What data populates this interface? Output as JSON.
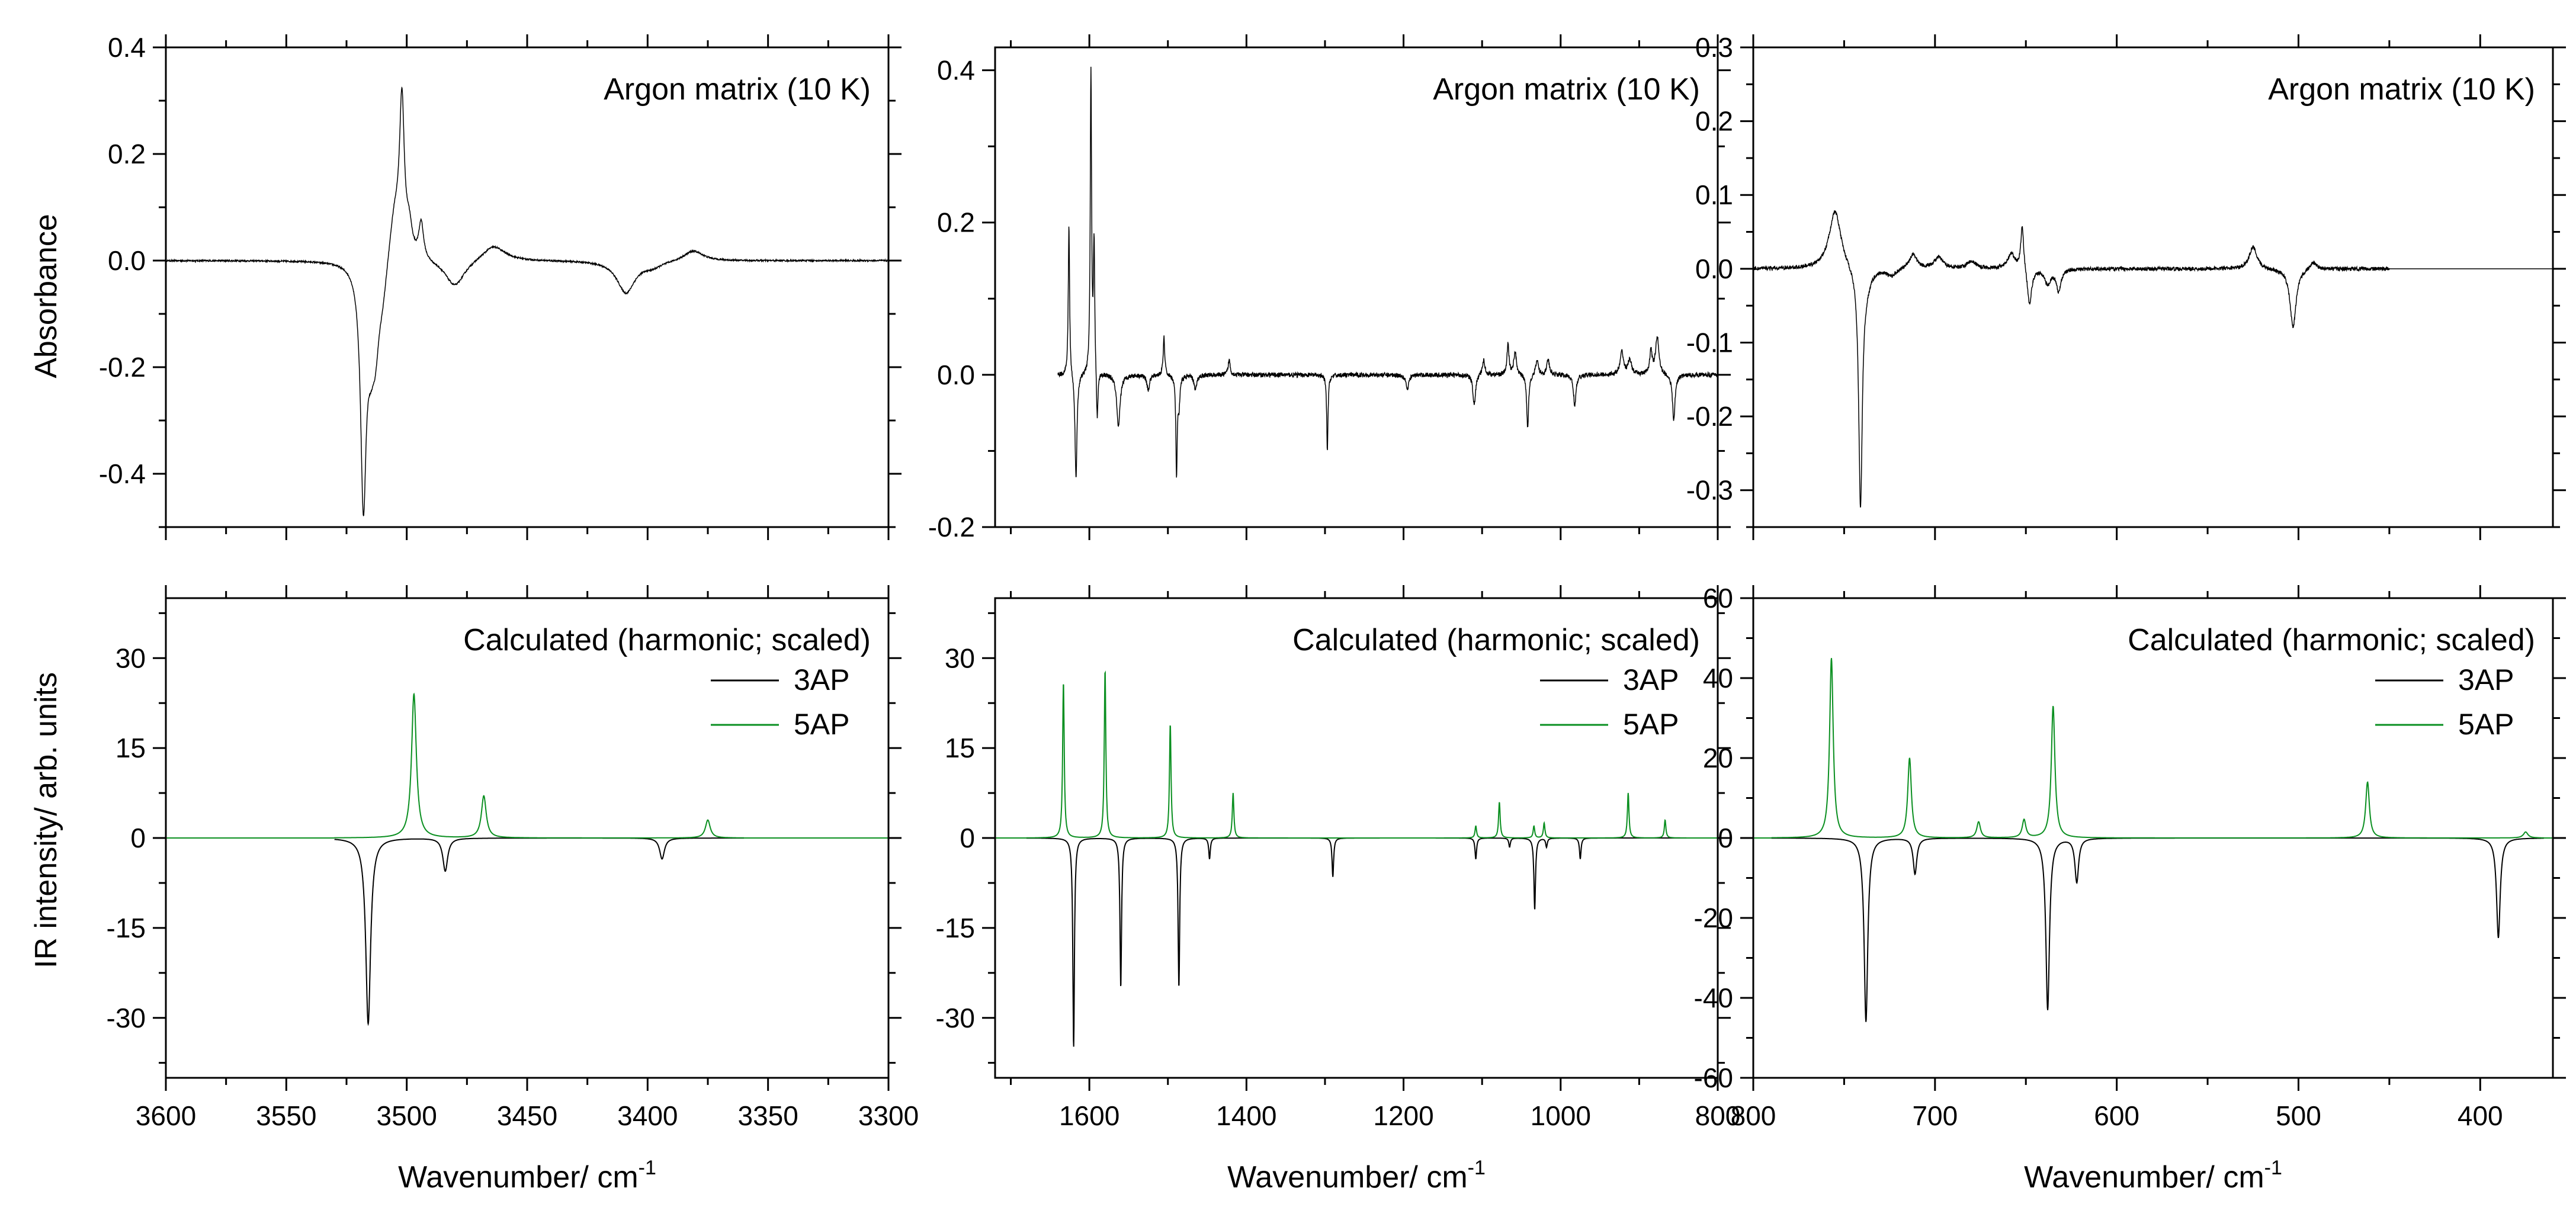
{
  "chart_data": [
    {
      "id": "top-left",
      "type": "line",
      "xlim": [
        3600,
        3300
      ],
      "ylim": [
        -0.5,
        0.4
      ],
      "xticks": [
        3600,
        3550,
        3500,
        3450,
        3400,
        3350,
        3300
      ],
      "xtick_labels": [],
      "yticks": [
        0.4,
        0.2,
        0.0,
        -0.2,
        -0.4
      ],
      "ytick_labels": [
        "0.4",
        "0.2",
        "0.0",
        "-0.2",
        "-0.4"
      ],
      "ylabel": "Absorbance",
      "xlabel": "",
      "annotation": "Argon matrix (10 K)",
      "baseline": 0,
      "series": [
        {
          "name": "Argon matrix",
          "color": "#000000",
          "width": 1.5,
          "noise": 0.0015,
          "x_range": [
            3600,
            3300
          ],
          "peaks": [
            [
              3518,
              -0.43,
              1.4
            ],
            [
              3515,
              -0.11,
              2.0
            ],
            [
              3513,
              -0.12,
              2.0
            ],
            [
              3510,
              -0.06,
              2.5
            ],
            [
              3505,
              0.1,
              3.0
            ],
            [
              3502,
              0.28,
              1.2
            ],
            [
              3499,
              0.05,
              1.5
            ],
            [
              3494,
              0.07,
              1.2
            ],
            [
              3480,
              -0.05,
              5.0
            ],
            [
              3464,
              0.03,
              6.0
            ],
            [
              3409,
              -0.06,
              4.5
            ],
            [
              3398,
              -0.01,
              5.0
            ],
            [
              3381,
              0.02,
              5.0
            ]
          ]
        }
      ]
    },
    {
      "id": "top-middle",
      "type": "line",
      "xlim": [
        1720,
        800
      ],
      "ylim": [
        -0.2,
        0.43
      ],
      "xticks": [
        1600,
        1400,
        1200,
        1000,
        800
      ],
      "xtick_labels": [],
      "yticks": [
        0.4,
        0.2,
        0.0,
        -0.2
      ],
      "ytick_labels": [
        "0.4",
        "0.2",
        "0.0",
        "-0.2"
      ],
      "ylabel": "",
      "xlabel": "",
      "annotation": "Argon matrix (10 K)",
      "baseline": 0,
      "series": [
        {
          "name": "Argon matrix",
          "color": "#000000",
          "width": 1.5,
          "noise": 0.003,
          "x_range": [
            1640,
            800
          ],
          "peaks": [
            [
              1626,
              0.2,
              1.0
            ],
            [
              1617,
              -0.14,
              1.5
            ],
            [
              1598,
              0.4,
              1.0
            ],
            [
              1594,
              0.17,
              1.0
            ],
            [
              1590,
              -0.07,
              1.2
            ],
            [
              1563,
              -0.07,
              2.5
            ],
            [
              1525,
              -0.02,
              2.0
            ],
            [
              1505,
              0.05,
              1.2
            ],
            [
              1489,
              -0.13,
              1.0
            ],
            [
              1486,
              -0.04,
              1.5
            ],
            [
              1465,
              -0.02,
              2.0
            ],
            [
              1422,
              0.02,
              1.5
            ],
            [
              1297,
              -0.1,
              1.0
            ],
            [
              1195,
              -0.02,
              2.0
            ],
            [
              1110,
              -0.04,
              2.0
            ],
            [
              1098,
              0.02,
              2.0
            ],
            [
              1067,
              0.04,
              1.5
            ],
            [
              1058,
              0.03,
              2.0
            ],
            [
              1042,
              -0.07,
              1.5
            ],
            [
              1030,
              0.02,
              2.0
            ],
            [
              1016,
              0.02,
              2.0
            ],
            [
              982,
              -0.04,
              2.0
            ],
            [
              922,
              0.03,
              2.5
            ],
            [
              912,
              0.02,
              2.5
            ],
            [
              885,
              0.03,
              2.0
            ],
            [
              877,
              0.05,
              2.5
            ],
            [
              856,
              -0.06,
              2.0
            ]
          ]
        }
      ]
    },
    {
      "id": "top-right",
      "type": "line",
      "xlim": [
        800,
        360
      ],
      "ylim": [
        -0.35,
        0.3
      ],
      "xticks": [
        800,
        700,
        600,
        500,
        400
      ],
      "xtick_labels": [],
      "yticks": [
        0.3,
        0.2,
        0.1,
        0.0,
        -0.1,
        -0.2,
        -0.3
      ],
      "ytick_labels": [
        "0.3",
        "0.2",
        "0.1",
        "0.0",
        "-0.1",
        "-0.2",
        "-0.3"
      ],
      "ylabel": "",
      "xlabel": "",
      "annotation": "Argon matrix (10 K)",
      "baseline": 0,
      "series": [
        {
          "name": "Argon matrix",
          "color": "#000000",
          "width": 1.5,
          "noise": 0.0025,
          "x_range": [
            800,
            450
          ],
          "peaks": [
            [
              755,
              0.08,
              4.0
            ],
            [
              741,
              -0.32,
              1.2
            ],
            [
              738,
              -0.02,
              3.0
            ],
            [
              724,
              -0.01,
              3.0
            ],
            [
              712,
              0.02,
              2.5
            ],
            [
              698,
              0.015,
              3.0
            ],
            [
              680,
              0.01,
              3.0
            ],
            [
              658,
              0.02,
              2.5
            ],
            [
              652,
              0.06,
              1.0
            ],
            [
              648,
              -0.05,
              1.5
            ],
            [
              638,
              -0.02,
              2.0
            ],
            [
              632,
              -0.03,
              1.5
            ],
            [
              525,
              0.03,
              2.5
            ],
            [
              503,
              -0.08,
              2.0
            ],
            [
              492,
              0.01,
              2.5
            ]
          ]
        }
      ]
    },
    {
      "id": "bottom-left",
      "type": "line",
      "xlim": [
        3600,
        3300
      ],
      "ylim": [
        -40,
        40
      ],
      "xticks": [
        3600,
        3550,
        3500,
        3450,
        3400,
        3350,
        3300
      ],
      "xtick_labels": [
        "3600",
        "3550",
        "3500",
        "3450",
        "3400",
        "3350",
        "3300"
      ],
      "yticks": [
        30,
        15,
        0,
        -15,
        -30
      ],
      "ytick_labels": [
        "30",
        "15",
        "0",
        "-15",
        "-30"
      ],
      "ylabel": "IR intensity/ arb. units",
      "xlabel": "Wavenumber/ cm",
      "xlabel_sup": "-1",
      "annotation": "Calculated (harmonic; scaled)",
      "baseline": 0,
      "series": [
        {
          "name": "3AP",
          "color": "#000000",
          "width": 2,
          "noise": 0,
          "x_range": [
            3530,
            3360
          ],
          "peaks": [
            [
              3516,
              -31,
              1.2
            ],
            [
              3484,
              -5.5,
              1.2
            ],
            [
              3394,
              -3.5,
              1.2
            ]
          ]
        },
        {
          "name": "5AP",
          "color": "#0a8f20",
          "width": 2,
          "noise": 0,
          "x_range": [
            3530,
            3360
          ],
          "peaks": [
            [
              3497,
              24,
              1.2
            ],
            [
              3468,
              7,
              1.2
            ],
            [
              3375,
              3,
              1.2
            ]
          ]
        }
      ],
      "legend": [
        {
          "label": "3AP",
          "color": "#000000"
        },
        {
          "label": "5AP",
          "color": "#0a8f20"
        }
      ]
    },
    {
      "id": "bottom-middle",
      "type": "line",
      "xlim": [
        1720,
        800
      ],
      "ylim": [
        -40,
        40
      ],
      "xticks": [
        1600,
        1400,
        1200,
        1000,
        800
      ],
      "xtick_labels": [
        "1600",
        "1400",
        "1200",
        "1000",
        "800"
      ],
      "yticks": [
        30,
        15,
        0,
        -15,
        -30
      ],
      "ytick_labels": [
        "30",
        "15",
        "0",
        "-15",
        "-30"
      ],
      "ylabel": "",
      "xlabel": "Wavenumber/ cm",
      "xlabel_sup": "-1",
      "annotation": "Calculated (harmonic; scaled)",
      "baseline": 0,
      "series": [
        {
          "name": "3AP",
          "color": "#000000",
          "width": 2,
          "noise": 0,
          "x_range": [
            1680,
            840
          ],
          "peaks": [
            [
              1620,
              -35,
              1.2
            ],
            [
              1560,
              -25,
              1.2
            ],
            [
              1486,
              -25,
              1.2
            ],
            [
              1447,
              -3.5,
              1.2
            ],
            [
              1290,
              -6.5,
              1.2
            ],
            [
              1108,
              -3.5,
              1.2
            ],
            [
              1065,
              -1.5,
              1.2
            ],
            [
              1033,
              -12,
              1.2
            ],
            [
              1018,
              -1.5,
              1.2
            ],
            [
              975,
              -3.5,
              1.2
            ]
          ]
        },
        {
          "name": "5AP",
          "color": "#0a8f20",
          "width": 2,
          "noise": 0,
          "x_range": [
            1680,
            840
          ],
          "peaks": [
            [
              1633,
              26,
              1.2
            ],
            [
              1580,
              28,
              1.2
            ],
            [
              1497,
              19,
              1.2
            ],
            [
              1417,
              7.5,
              1.2
            ],
            [
              1108,
              2,
              1.2
            ],
            [
              1078,
              6,
              1.2
            ],
            [
              1034,
              2,
              1.2
            ],
            [
              1021,
              2.5,
              1.2
            ],
            [
              914,
              7.5,
              1.2
            ],
            [
              867,
              3,
              1.2
            ]
          ]
        }
      ],
      "legend": [
        {
          "label": "3AP",
          "color": "#000000"
        },
        {
          "label": "5AP",
          "color": "#0a8f20"
        }
      ]
    },
    {
      "id": "bottom-right",
      "type": "line",
      "xlim": [
        800,
        360
      ],
      "ylim": [
        -60,
        60
      ],
      "xticks": [
        800,
        700,
        600,
        500,
        400
      ],
      "xtick_labels": [
        "800",
        "700",
        "600",
        "500",
        "400"
      ],
      "yticks": [
        60,
        40,
        20,
        0,
        -20,
        -40,
        -60
      ],
      "ytick_labels": [
        "60",
        "40",
        "20",
        "0",
        "-20",
        "-40",
        "-60"
      ],
      "ylabel": "",
      "xlabel": "Wavenumber/ cm",
      "xlabel_sup": "-1",
      "annotation": "Calculated (harmonic; scaled)",
      "baseline": 0,
      "series": [
        {
          "name": "3AP",
          "color": "#000000",
          "width": 2,
          "noise": 0,
          "x_range": [
            790,
            365
          ],
          "peaks": [
            [
              738,
              -46,
              1.2
            ],
            [
              711,
              -9,
              1.2
            ],
            [
              638,
              -43,
              1.2
            ],
            [
              622,
              -11,
              1.2
            ],
            [
              390,
              -25,
              1.2
            ]
          ]
        },
        {
          "name": "5AP",
          "color": "#0a8f20",
          "width": 2,
          "noise": 0,
          "x_range": [
            790,
            365
          ],
          "peaks": [
            [
              757,
              45,
              1.2
            ],
            [
              714,
              20,
              1.2
            ],
            [
              676,
              4,
              1.2
            ],
            [
              651,
              4.5,
              1.2
            ],
            [
              635,
              33,
              1.2
            ],
            [
              462,
              14,
              1.2
            ],
            [
              375,
              1.5,
              1.5
            ]
          ]
        }
      ],
      "legend": [
        {
          "label": "3AP",
          "color": "#000000"
        },
        {
          "label": "5AP",
          "color": "#0a8f20"
        }
      ]
    }
  ]
}
